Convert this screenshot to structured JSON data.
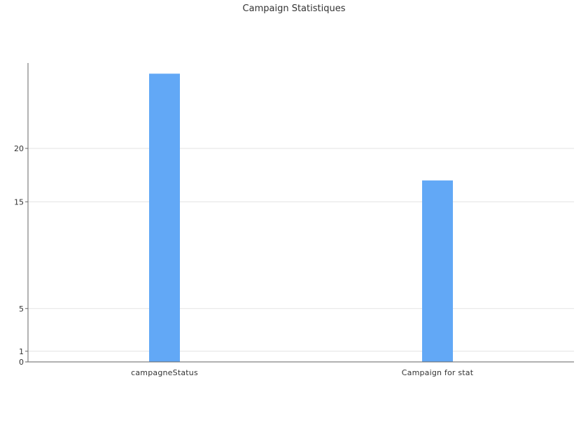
{
  "chart_data": {
    "type": "bar",
    "title": "Campaign Statistiques",
    "xlabel": "",
    "ylabel": "",
    "categories": [
      "campagneStatus",
      "Campaign for stat"
    ],
    "values": [
      27,
      17
    ],
    "ylim": [
      0,
      28
    ],
    "yticks": [
      0,
      1,
      5,
      15,
      20
    ],
    "grid": true,
    "legend": "none",
    "colors": {
      "bar": "#62a8f6",
      "grid": "#e3e3e3",
      "axis": "#666666",
      "text": "#333333"
    }
  }
}
